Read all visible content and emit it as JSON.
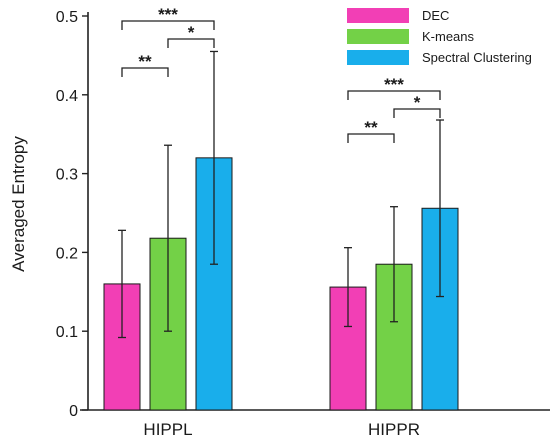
{
  "chart_data": {
    "type": "bar",
    "ylabel": "Averaged Entropy",
    "xlabel": "",
    "ylim": [
      0,
      0.5
    ],
    "yticks": [
      0,
      0.1,
      0.2,
      0.3,
      0.4,
      0.5
    ],
    "ytick_labels": [
      "0",
      "0.1",
      "0.2",
      "0.3",
      "0.4",
      "0.5"
    ],
    "categories": [
      "HIPPL",
      "HIPPR"
    ],
    "series": [
      {
        "name": "DEC",
        "color": "#f23fb5",
        "values": [
          0.16,
          0.156
        ],
        "errors": [
          0.068,
          0.05
        ]
      },
      {
        "name": "K-means",
        "color": "#73d147",
        "values": [
          0.218,
          0.185
        ],
        "errors": [
          0.118,
          0.073
        ]
      },
      {
        "name": "Spectral Clustering",
        "color": "#19aeeb",
        "values": [
          0.32,
          0.256
        ],
        "errors": [
          0.135,
          0.112
        ]
      }
    ],
    "legend_position": "top-right",
    "grid": false,
    "significance": [
      {
        "category": "HIPPL",
        "from_series": "DEC",
        "to_series": "Spectral Clustering",
        "label": "***"
      },
      {
        "category": "HIPPL",
        "from_series": "K-means",
        "to_series": "Spectral Clustering",
        "label": "*"
      },
      {
        "category": "HIPPL",
        "from_series": "DEC",
        "to_series": "K-means",
        "label": "**"
      },
      {
        "category": "HIPPR",
        "from_series": "DEC",
        "to_series": "Spectral Clustering",
        "label": "***"
      },
      {
        "category": "HIPPR",
        "from_series": "K-means",
        "to_series": "Spectral Clustering",
        "label": "*"
      },
      {
        "category": "HIPPR",
        "from_series": "DEC",
        "to_series": "K-means",
        "label": "**"
      }
    ]
  }
}
